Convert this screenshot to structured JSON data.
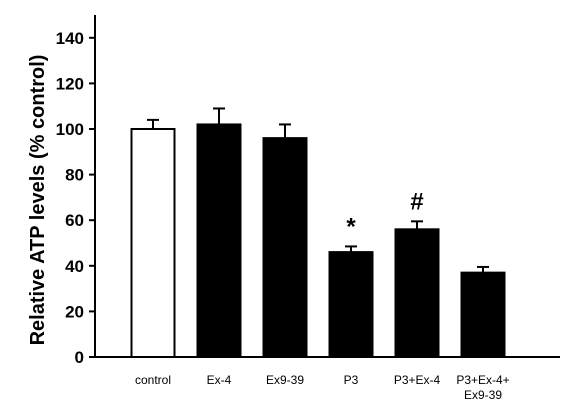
{
  "chart_data": {
    "type": "bar",
    "title": "",
    "xlabel": "",
    "ylabel": "Relative ATP levels (% control)",
    "ylim": [
      0,
      150
    ],
    "yticks": [
      0,
      20,
      40,
      60,
      80,
      100,
      120,
      140
    ],
    "grid": false,
    "legend": "none",
    "categories": [
      [
        "control"
      ],
      [
        "Ex-4"
      ],
      [
        "Ex9-39"
      ],
      [
        "P3"
      ],
      [
        "P3+Ex-4"
      ],
      [
        "P3+Ex-4+",
        "Ex9-39"
      ]
    ],
    "values": [
      100,
      102,
      96,
      46,
      56,
      37
    ],
    "errors": [
      4,
      7,
      6,
      2.5,
      3.5,
      2.5
    ],
    "fills": [
      "#ffffff",
      "#000000",
      "#000000",
      "#000000",
      "#000000",
      "#000000"
    ],
    "annotations": [
      "",
      "",
      "",
      "*",
      "#",
      ""
    ]
  }
}
